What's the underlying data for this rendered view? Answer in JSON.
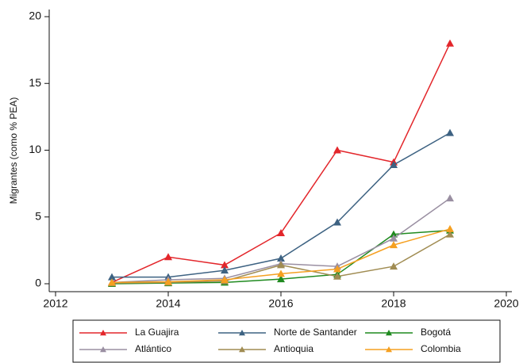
{
  "chart_data": {
    "type": "line",
    "y_label": "Migrantes (como % PEA)",
    "x": [
      2013,
      2014,
      2015,
      2016,
      2017,
      2018,
      2019
    ],
    "series": [
      {
        "name": "La Guajira",
        "color": "#e3262b",
        "values": [
          0.1,
          2.0,
          1.4,
          3.8,
          10.0,
          9.1,
          18.0
        ]
      },
      {
        "name": "Norte de Santander",
        "color": "#3d6282",
        "values": [
          0.5,
          0.5,
          1.0,
          1.9,
          4.6,
          8.9,
          11.3
        ]
      },
      {
        "name": "Bogotá",
        "color": "#1f8a1f",
        "values": [
          0.0,
          0.05,
          0.1,
          0.35,
          0.7,
          3.7,
          4.0
        ]
      },
      {
        "name": "Atlántico",
        "color": "#9a8fa2",
        "values": [
          0.1,
          0.3,
          0.4,
          1.5,
          1.3,
          3.4,
          6.4
        ]
      },
      {
        "name": "Antioquia",
        "color": "#a08c52",
        "values": [
          0.05,
          0.1,
          0.2,
          1.4,
          0.55,
          1.3,
          3.7
        ]
      },
      {
        "name": "Colombia",
        "color": "#f5a021",
        "values": [
          0.1,
          0.15,
          0.3,
          0.75,
          1.1,
          2.9,
          4.1
        ]
      }
    ],
    "xlim": [
      2012,
      2020
    ],
    "xticks": [
      2012,
      2014,
      2016,
      2018,
      2020
    ],
    "ylim": [
      0,
      20
    ],
    "yticks": [
      0,
      5,
      10,
      15,
      20
    ],
    "grid": false,
    "legend": "bottom"
  }
}
